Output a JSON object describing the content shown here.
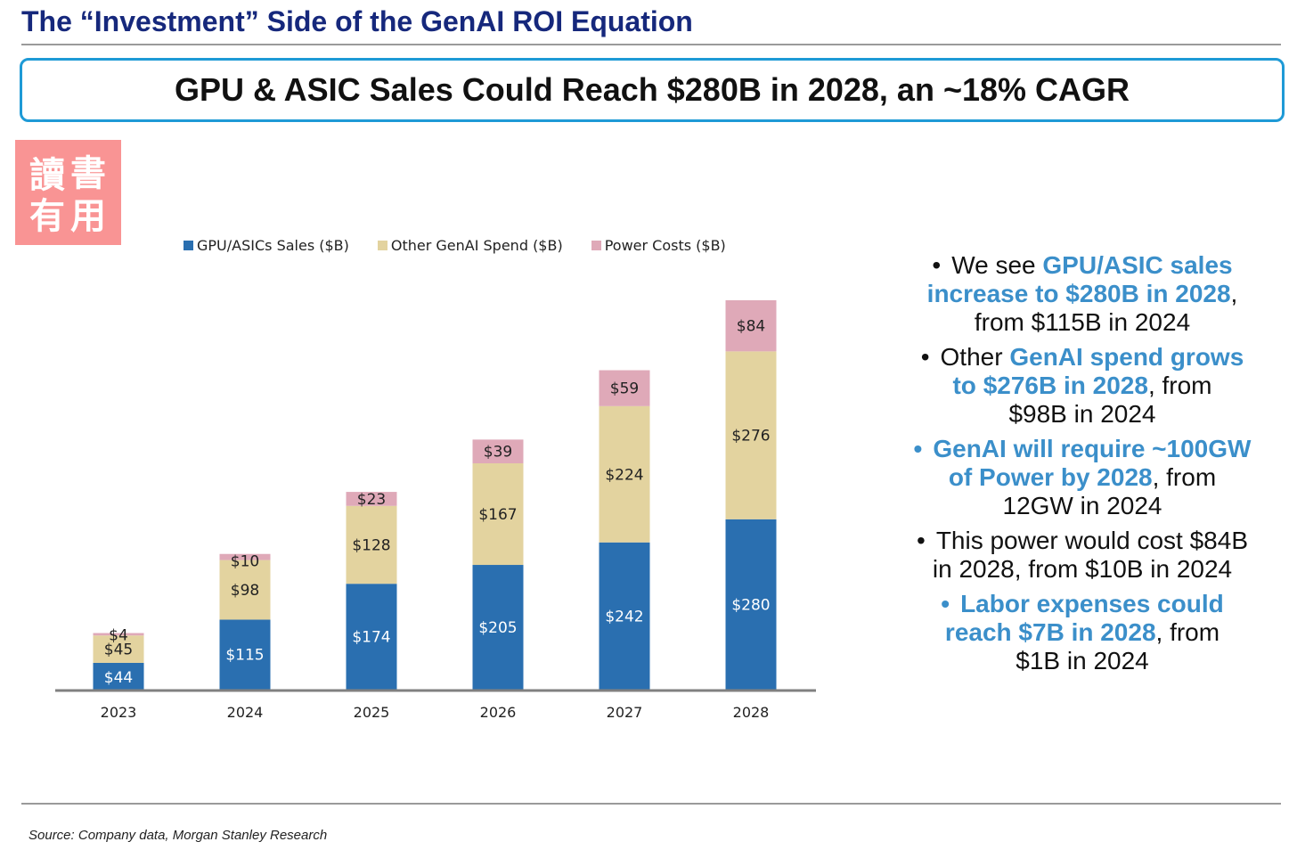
{
  "header": {
    "title": "The “Investment” Side of the GenAI ROI Equation",
    "headline": "GPU & ASIC Sales Could Reach $280B in 2028, an ~18% CAGR"
  },
  "stamp": {
    "chars": [
      "讀",
      "書",
      "有",
      "用"
    ]
  },
  "colors": {
    "gpu": "#2a6fb0",
    "other": "#e3d39f",
    "power": "#dfa9b8",
    "title": "#16287c",
    "accent": "#3b8fca"
  },
  "chart_data": {
    "type": "bar",
    "stacked": true,
    "categories": [
      "2023",
      "2024",
      "2025",
      "2026",
      "2027",
      "2028"
    ],
    "series": [
      {
        "name": "GPU/ASICs Sales ($B)",
        "values": [
          44,
          115,
          174,
          205,
          242,
          280
        ]
      },
      {
        "name": "Other GenAI Spend ($B)",
        "values": [
          45,
          98,
          128,
          167,
          224,
          276
        ]
      },
      {
        "name": "Power Costs ($B)",
        "values": [
          4,
          10,
          23,
          39,
          59,
          84
        ]
      }
    ],
    "ylim": [
      0,
      640
    ],
    "legend": "top",
    "grid": false,
    "title": "",
    "xlabel": "",
    "ylabel": ""
  },
  "bullets": [
    {
      "lines": [
        [
          {
            "t": "We see ",
            "h": false
          },
          {
            "t": "GPU/ASIC sales",
            "h": true
          }
        ],
        [
          {
            "t": "increase to $280B in 2028",
            "h": true
          },
          {
            "t": ",",
            "h": false
          }
        ],
        [
          {
            "t": "from $115B in 2024",
            "h": false
          }
        ]
      ],
      "blue_dot": false
    },
    {
      "lines": [
        [
          {
            "t": "Other ",
            "h": false
          },
          {
            "t": "GenAI spend grows",
            "h": true
          }
        ],
        [
          {
            "t": "to $276B in 2028",
            "h": true
          },
          {
            "t": ", from",
            "h": false
          }
        ],
        [
          {
            "t": "$98B in 2024",
            "h": false
          }
        ]
      ],
      "blue_dot": false
    },
    {
      "lines": [
        [
          {
            "t": "GenAI will require ~100GW",
            "h": true
          }
        ],
        [
          {
            "t": "of Power by 2028",
            "h": true
          },
          {
            "t": ", from",
            "h": false
          }
        ],
        [
          {
            "t": "12GW in 2024",
            "h": false
          }
        ]
      ],
      "blue_dot": true
    },
    {
      "lines": [
        [
          {
            "t": "This power would cost $84B",
            "h": false
          }
        ],
        [
          {
            "t": "in 2028, from $10B in 2024",
            "h": false
          }
        ]
      ],
      "blue_dot": false
    },
    {
      "lines": [
        [
          {
            "t": "Labor expenses could",
            "h": true
          }
        ],
        [
          {
            "t": "reach $7B in 2028",
            "h": true
          },
          {
            "t": ", from",
            "h": false
          }
        ],
        [
          {
            "t": "$1B in 2024",
            "h": false
          }
        ]
      ],
      "blue_dot": true
    }
  ],
  "footer": {
    "source": "Source: Company data, Morgan Stanley Research"
  }
}
